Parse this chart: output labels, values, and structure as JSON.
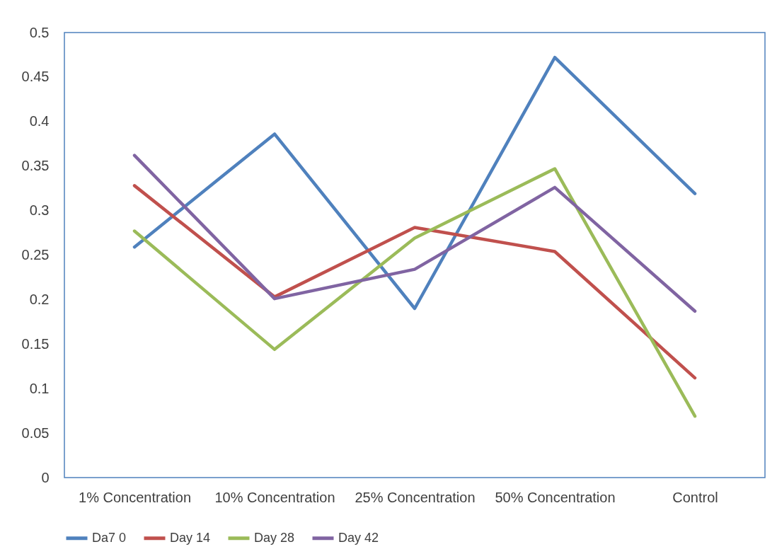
{
  "chart_data": {
    "type": "line",
    "categories": [
      "1% Concentration",
      "10% Concentration",
      "25% Concentration",
      "50% Concentration",
      "Control"
    ],
    "series": [
      {
        "name": "Da7 0",
        "color": "#4f81bd",
        "values": [
          0.259,
          0.386,
          0.19,
          0.472,
          0.319
        ]
      },
      {
        "name": "Day 14",
        "color": "#c0504d",
        "values": [
          0.328,
          0.203,
          0.281,
          0.254,
          0.112
        ]
      },
      {
        "name": "Day 28",
        "color": "#9bbb59",
        "values": [
          0.277,
          0.144,
          0.269,
          0.347,
          0.069
        ]
      },
      {
        "name": "Day 42",
        "color": "#8064a2",
        "values": [
          0.362,
          0.201,
          0.234,
          0.326,
          0.187
        ]
      }
    ],
    "ylim": [
      0,
      0.5
    ],
    "yticks": [
      0,
      0.05,
      0.1,
      0.15,
      0.2,
      0.25,
      0.3,
      0.35,
      0.4,
      0.45,
      0.5
    ],
    "grid": false,
    "legend": "bottom",
    "marker": "none",
    "line_style": "solid"
  }
}
